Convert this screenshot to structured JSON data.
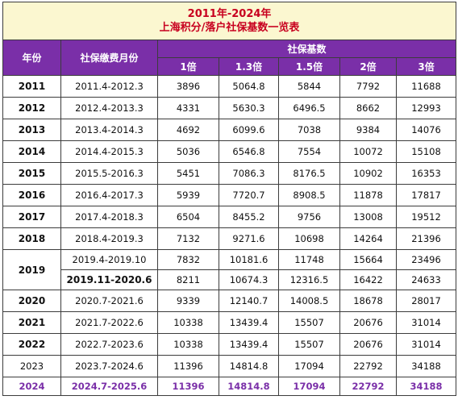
{
  "title": {
    "line1": "2011年-2024年",
    "line2": "上海积分/落户社保基数一览表"
  },
  "headers": {
    "year": "年份",
    "period": "社保缴费月份",
    "base_group": "社保基数",
    "multipliers": [
      "1倍",
      "1.3倍",
      "1.5倍",
      "2倍",
      "3倍"
    ]
  },
  "rows": [
    {
      "year": "2011",
      "period": "2011.4-2012.3",
      "values": [
        "3896",
        "5064.8",
        "5844",
        "7792",
        "11688"
      ]
    },
    {
      "year": "2012",
      "period": "2012.4-2013.3",
      "values": [
        "4331",
        "5630.3",
        "6496.5",
        "8662",
        "12993"
      ]
    },
    {
      "year": "2013",
      "period": "2013.4-2014.3",
      "values": [
        "4692",
        "6099.6",
        "7038",
        "9384",
        "14076"
      ]
    },
    {
      "year": "2014",
      "period": "2014.4-2015.3",
      "values": [
        "5036",
        "6546.8",
        "7554",
        "10072",
        "15108"
      ]
    },
    {
      "year": "2015",
      "period": "2015.5-2016.3",
      "values": [
        "5451",
        "7086.3",
        "8176.5",
        "10902",
        "16353"
      ]
    },
    {
      "year": "2016",
      "period": "2016.4-2017.3",
      "values": [
        "5939",
        "7720.7",
        "8908.5",
        "11878",
        "17817"
      ]
    },
    {
      "year": "2017",
      "period": "2017.4-2018.3",
      "values": [
        "6504",
        "8455.2",
        "9756",
        "13008",
        "19512"
      ]
    },
    {
      "year": "2018",
      "period": "2018.4-2019.3",
      "values": [
        "7132",
        "9271.6",
        "10698",
        "14264",
        "21396"
      ]
    },
    {
      "year": "2019",
      "period": "2019.4-2019.10",
      "values": [
        "7832",
        "10181.6",
        "11748",
        "15664",
        "23496"
      ]
    },
    {
      "year": "",
      "period": "2019.11-2020.6",
      "values": [
        "8211",
        "10674.3",
        "12316.5",
        "16422",
        "24633"
      ]
    },
    {
      "year": "2020",
      "period": "2020.7-2021.6",
      "values": [
        "9339",
        "12140.7",
        "14008.5",
        "18678",
        "28017"
      ]
    },
    {
      "year": "2021",
      "period": "2021.7-2022.6",
      "values": [
        "10338",
        "13439.4",
        "15507",
        "20676",
        "31014"
      ]
    },
    {
      "year": "2022",
      "period": "2022.7-2023.6",
      "values": [
        "10338",
        "13439.4",
        "15507",
        "20676",
        "31014"
      ]
    },
    {
      "year": "2023",
      "period": "2023.7-2024.6",
      "values": [
        "11396",
        "14814.8",
        "17094",
        "22792",
        "34188"
      ]
    },
    {
      "year": "2024",
      "period": "2024.7-2025.6",
      "values": [
        "11396",
        "14814.8",
        "17094",
        "22792",
        "34188"
      ]
    }
  ]
}
